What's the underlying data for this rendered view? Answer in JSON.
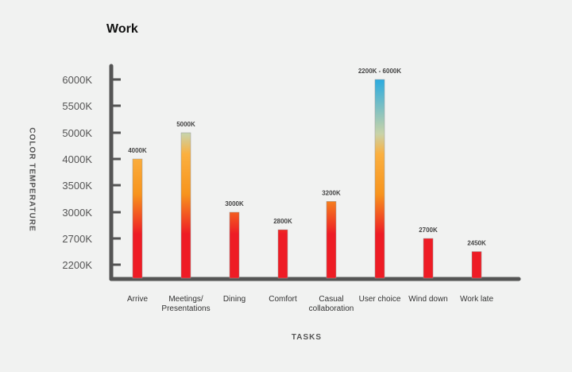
{
  "chart_data": {
    "type": "bar",
    "title": "Work",
    "xlabel": "TASKS",
    "ylabel": "COLOR TEMPERATURE",
    "y_tick_labels": [
      "6000K",
      "5500K",
      "5000K",
      "4000K",
      "3500K",
      "3000K",
      "2700K",
      "2200K"
    ],
    "categories": [
      [
        "Arrive"
      ],
      [
        "Meetings/",
        "Presentations"
      ],
      [
        "Dining"
      ],
      [
        "Comfort"
      ],
      [
        "Casual",
        "collaboration"
      ],
      [
        "User choice"
      ],
      [
        "Wind down"
      ],
      [
        "Work late"
      ]
    ],
    "values": [
      4000,
      5000,
      3000,
      2800,
      3200,
      6000,
      2700,
      2450
    ],
    "range_start": [
      null,
      null,
      null,
      null,
      null,
      2200,
      null,
      null
    ],
    "data_labels": [
      "4000K",
      "5000K",
      "3000K",
      "2800K",
      "3200K",
      "2200K - 6000K",
      "2700K",
      "2450K"
    ],
    "scale": "categorical (non-linear tick spacing)",
    "grid": false,
    "colors": {
      "warm_red": "#ee1c25",
      "orange": "#f7941d",
      "amber": "#fbb040",
      "neutral": "#c9d3a8",
      "cool_blue": "#27aae1",
      "axis": "#555555"
    }
  }
}
